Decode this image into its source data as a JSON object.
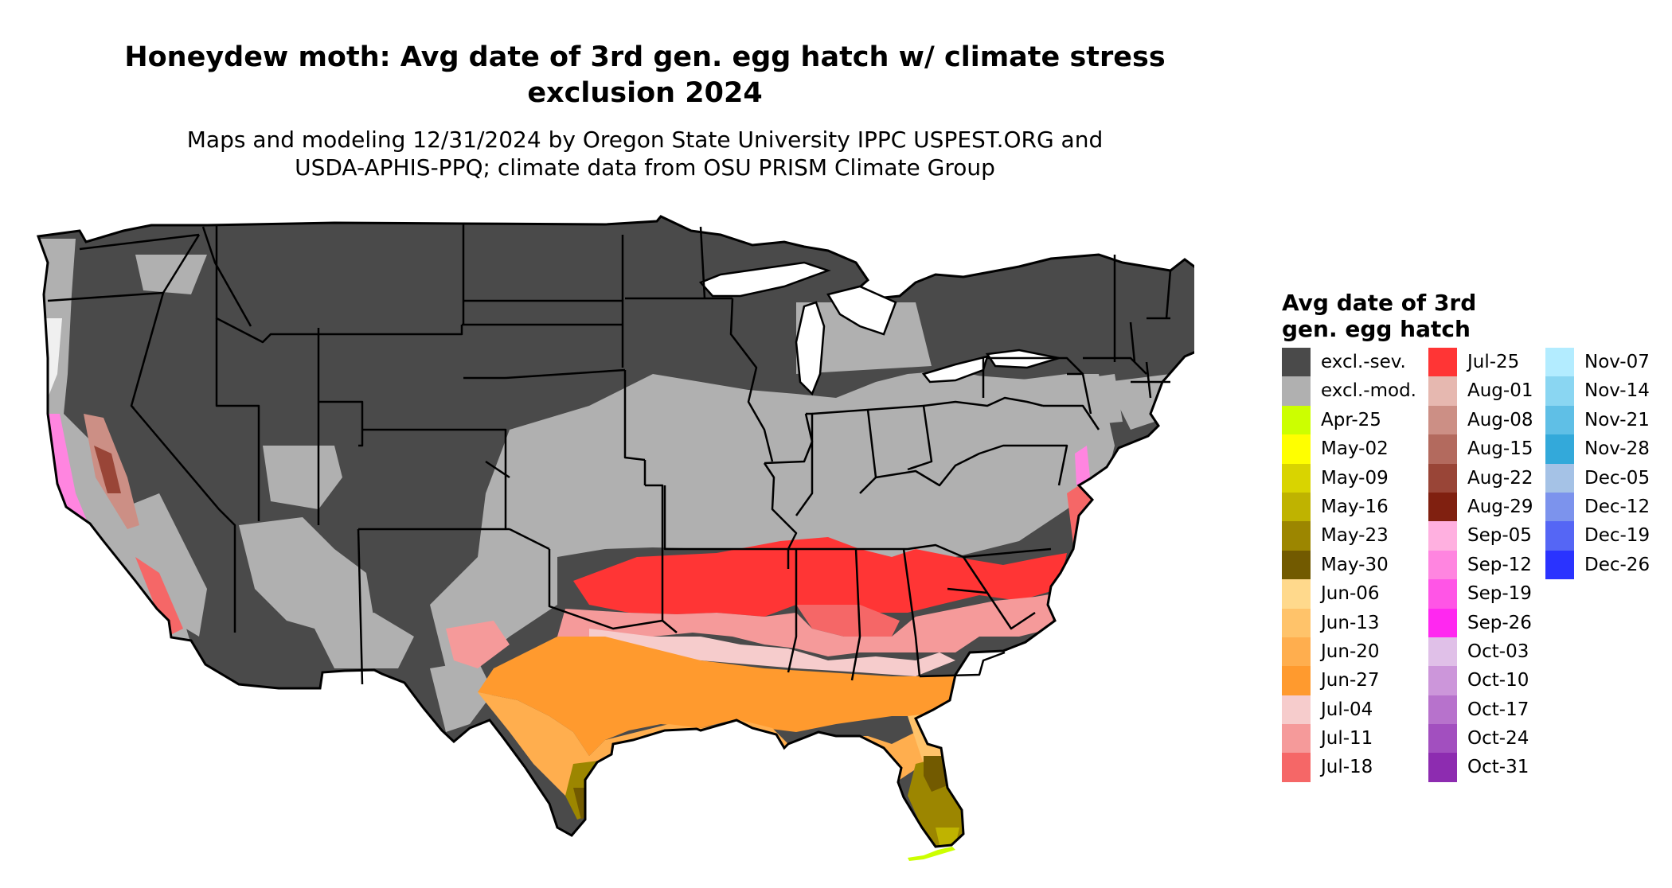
{
  "title_line1": "Honeydew moth: Avg date of 3rd gen. egg hatch w/ climate stress",
  "title_line2": "exclusion 2024",
  "subtitle_line1": "Maps and modeling 12/31/2024 by Oregon State University IPPC USPEST.ORG and",
  "subtitle_line2": "USDA-APHIS-PPQ; climate data from OSU PRISM Climate Group",
  "legend": {
    "title_line1": "Avg date of 3rd",
    "title_line2": "gen. egg hatch",
    "columns": [
      [
        {
          "label": "excl.-sev.",
          "color": "#4a4a4a"
        },
        {
          "label": "excl.-mod.",
          "color": "#b0b0b0"
        },
        {
          "label": "Apr-25",
          "color": "#ccff00"
        },
        {
          "label": "May-02",
          "color": "#ffff00"
        },
        {
          "label": "May-09",
          "color": "#d9d400"
        },
        {
          "label": "May-16",
          "color": "#bfb300"
        },
        {
          "label": "May-23",
          "color": "#9c8600"
        },
        {
          "label": "May-30",
          "color": "#725a00"
        },
        {
          "label": "Jun-06",
          "color": "#ffd98c"
        },
        {
          "label": "Jun-13",
          "color": "#ffc36a"
        },
        {
          "label": "Jun-20",
          "color": "#ffae4e"
        },
        {
          "label": "Jun-27",
          "color": "#ff9a2e"
        },
        {
          "label": "Jul-04",
          "color": "#f6cccc"
        },
        {
          "label": "Jul-11",
          "color": "#f59a9a"
        },
        {
          "label": "Jul-18",
          "color": "#f56767"
        }
      ],
      [
        {
          "label": "Jul-25",
          "color": "#ff3535"
        },
        {
          "label": "Aug-01",
          "color": "#e6b8b0"
        },
        {
          "label": "Aug-08",
          "color": "#cc8f85"
        },
        {
          "label": "Aug-15",
          "color": "#b36a5e"
        },
        {
          "label": "Aug-22",
          "color": "#994537"
        },
        {
          "label": "Aug-29",
          "color": "#802010"
        },
        {
          "label": "Sep-05",
          "color": "#ffb0e0"
        },
        {
          "label": "Sep-12",
          "color": "#ff85e0"
        },
        {
          "label": "Sep-19",
          "color": "#ff55e6"
        },
        {
          "label": "Sep-26",
          "color": "#ff28f0"
        },
        {
          "label": "Oct-03",
          "color": "#e0c0e8"
        },
        {
          "label": "Oct-10",
          "color": "#cc96da"
        },
        {
          "label": "Oct-17",
          "color": "#b772cc"
        },
        {
          "label": "Oct-24",
          "color": "#a24fbf"
        },
        {
          "label": "Oct-31",
          "color": "#8d2cb0"
        }
      ],
      [
        {
          "label": "Nov-07",
          "color": "#b3ecff"
        },
        {
          "label": "Nov-14",
          "color": "#8ad6f2"
        },
        {
          "label": "Nov-21",
          "color": "#5fbfe6"
        },
        {
          "label": "Nov-28",
          "color": "#33a9da"
        },
        {
          "label": "Dec-05",
          "color": "#a5c2e6"
        },
        {
          "label": "Dec-12",
          "color": "#7c93ed"
        },
        {
          "label": "Dec-19",
          "color": "#5566f5"
        },
        {
          "label": "Dec-26",
          "color": "#2a33ff"
        }
      ]
    ]
  }
}
